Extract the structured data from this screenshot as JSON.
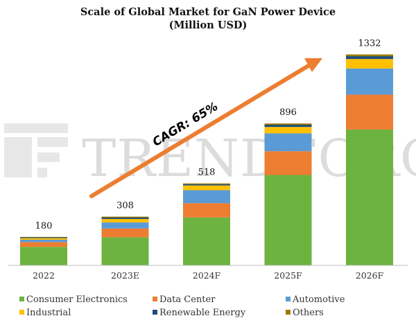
{
  "chart_data": {
    "type": "bar",
    "stacked": true,
    "title": "Scale of Global Market for GaN Power Device",
    "subtitle": "(Million USD)",
    "categories": [
      "2022",
      "2023E",
      "2024F",
      "2025F",
      "2026F"
    ],
    "totals": [
      180,
      308,
      518,
      896,
      1332
    ],
    "ylim": [
      0,
      1400
    ],
    "series": [
      {
        "name": "Consumer Electronics",
        "color": "#6db33f",
        "values": [
          117,
          178,
          303,
          571,
          858
        ]
      },
      {
        "name": "Data Center",
        "color": "#ed7d31",
        "values": [
          30,
          55,
          90,
          150,
          220
        ]
      },
      {
        "name": "Automotive",
        "color": "#5b9bd5",
        "values": [
          15,
          38,
          82,
          113,
          165
        ]
      },
      {
        "name": "Industrial",
        "color": "#ffc000",
        "values": [
          10,
          22,
          30,
          40,
          60
        ]
      },
      {
        "name": "Renewable Energy",
        "color": "#1f4e79",
        "values": [
          5,
          9,
          8,
          14,
          18
        ]
      },
      {
        "name": "Others",
        "color": "#9c7a00",
        "values": [
          3,
          6,
          5,
          8,
          11
        ]
      }
    ],
    "annotation": {
      "text": "CAGR: 65%",
      "color": "#ed7d31"
    },
    "legend_position": "bottom"
  },
  "watermark": {
    "text": "TRENDFORCE"
  }
}
